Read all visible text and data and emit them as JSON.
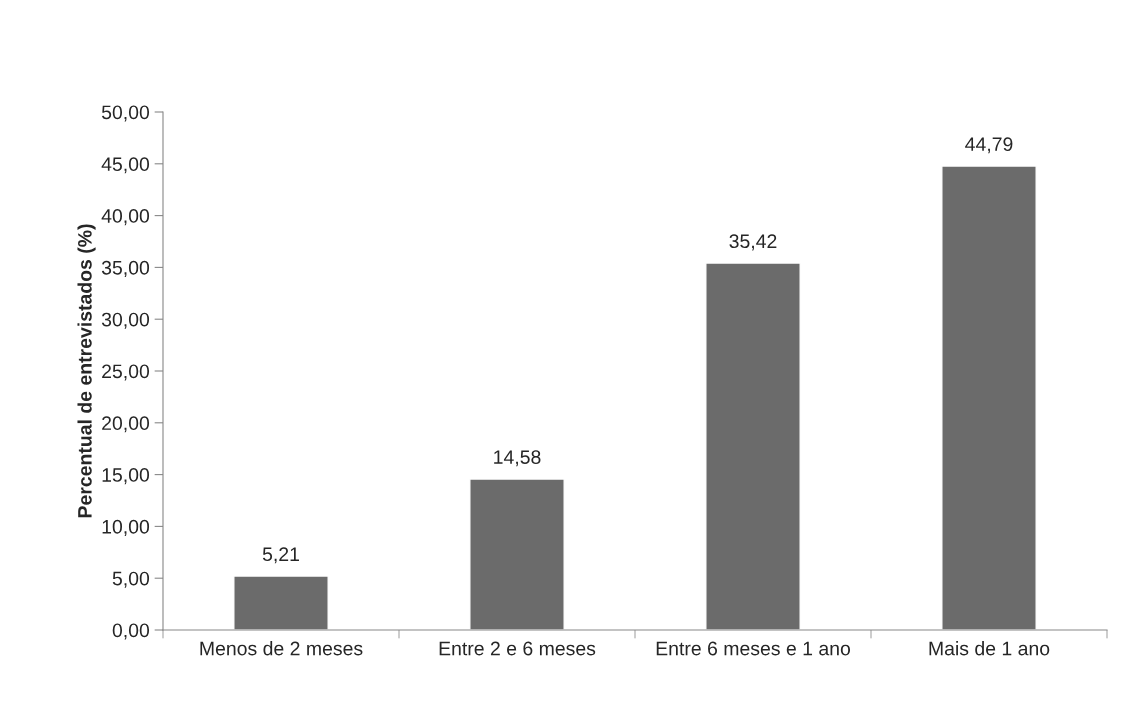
{
  "chart_data": {
    "type": "bar",
    "ylabel": "Percentual de entrevistados (%)",
    "categories": [
      "Menos de 2 meses",
      "Entre 2 e 6 meses",
      "Entre 6 meses e 1 ano",
      "Mais de 1 ano"
    ],
    "values": [
      5.21,
      14.58,
      35.42,
      44.79
    ],
    "value_labels": [
      "5,21",
      "14,58",
      "35,42",
      "44,79"
    ],
    "color": "#6b6b6b",
    "ylim": [
      0,
      50
    ],
    "yticks": [
      {
        "value": 0,
        "label": "0,00"
      },
      {
        "value": 5,
        "label": "5,00"
      },
      {
        "value": 10,
        "label": "10,00"
      },
      {
        "value": 15,
        "label": "15,00"
      },
      {
        "value": 20,
        "label": "20,00"
      },
      {
        "value": 25,
        "label": "25,00"
      },
      {
        "value": 30,
        "label": "30,00"
      },
      {
        "value": 35,
        "label": "35,00"
      },
      {
        "value": 40,
        "label": "40,00"
      },
      {
        "value": 45,
        "label": "45,00"
      },
      {
        "value": 50,
        "label": "50,00"
      }
    ],
    "grid": false
  }
}
